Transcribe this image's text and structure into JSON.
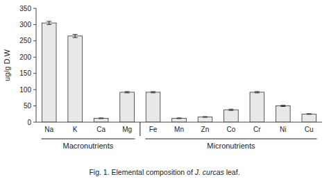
{
  "chart_data": {
    "type": "bar",
    "categories": [
      "Na",
      "K",
      "Ca",
      "Mg",
      "Fe",
      "Mn",
      "Zn",
      "Co",
      "Cr",
      "Ni",
      "Cu"
    ],
    "values": [
      305,
      265,
      12,
      92,
      92,
      12,
      16,
      38,
      92,
      50,
      25
    ],
    "errors": [
      5,
      5,
      1,
      2,
      2,
      1,
      1,
      2,
      2,
      2,
      1
    ],
    "color": "#e8e8e8",
    "ylabel": "ug/g D.W",
    "ylim": [
      0,
      350
    ],
    "yticks": [
      0,
      50,
      100,
      150,
      200,
      250,
      300,
      350
    ],
    "grid": false,
    "groups": [
      {
        "label": "Macronutrients",
        "categories": [
          "Na",
          "K",
          "Ca",
          "Mg"
        ]
      },
      {
        "label": "Micronutrients",
        "categories": [
          "Fe",
          "Mn",
          "Zn",
          "Co",
          "Cr",
          "Ni",
          "Cu"
        ]
      }
    ],
    "caption": [
      "Fig. 1. Elemental composition of ",
      "J. curcas",
      " leaf."
    ]
  }
}
